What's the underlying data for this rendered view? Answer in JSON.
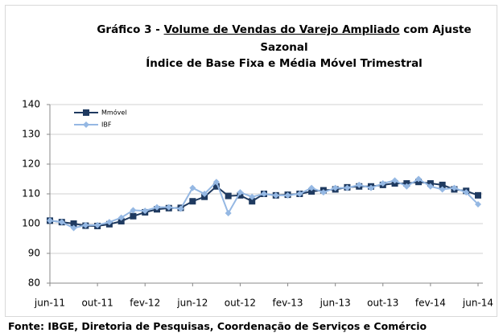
{
  "chart_data": {
    "type": "line",
    "title": {
      "prefix": "Gráfico 3 - ",
      "underlined": "Volume de Vendas do Varejo Ampliado",
      "suffix": " com Ajuste Sazonal"
    },
    "subtitle": "Índice de Base Fixa e Média Móvel Trimestral",
    "source": "Fonte: IBGE, Diretoria de Pesquisas, Coordenação de Serviços e Comércio",
    "categories": [
      "jun-11",
      null,
      null,
      null,
      "out-11",
      null,
      null,
      null,
      "fev-12",
      null,
      null,
      null,
      "jun-12",
      null,
      null,
      null,
      "out-12",
      null,
      null,
      null,
      "fev-13",
      null,
      null,
      null,
      "jun-13",
      null,
      null,
      null,
      "out-13",
      null,
      null,
      null,
      "fev-14",
      null,
      null,
      null,
      "jun-14"
    ],
    "series": [
      {
        "name": "Mmóvel",
        "color": "#1f3a60",
        "marker": "square",
        "values": [
          101,
          100.5,
          100,
          99.3,
          99.2,
          99.8,
          100.8,
          102.5,
          103.8,
          104.8,
          105.2,
          105.3,
          107.5,
          109,
          112.5,
          109.3,
          109.5,
          107.5,
          110,
          109.5,
          109.7,
          110,
          110.8,
          111.2,
          111.5,
          112.2,
          112.5,
          112.5,
          113,
          113.5,
          113.5,
          114,
          113.5,
          113,
          111.5,
          111,
          109.5
        ]
      },
      {
        "name": "IBF",
        "color": "#95b8e3",
        "marker": "diamond",
        "values": [
          101,
          100.5,
          98.5,
          99.5,
          99.5,
          100.5,
          102,
          104.5,
          104.3,
          105.5,
          105.5,
          105,
          112,
          110,
          114,
          103.5,
          110.5,
          109,
          110,
          109.5,
          109.5,
          110,
          112,
          110.5,
          112,
          112,
          113,
          112,
          113.5,
          114.5,
          112.5,
          115,
          112.5,
          111.5,
          112,
          110.5,
          106.5
        ]
      }
    ],
    "ylim": [
      80,
      140
    ],
    "yticks": [
      80,
      90,
      100,
      110,
      120,
      130,
      140
    ],
    "grid": true,
    "legend": "top-left"
  }
}
